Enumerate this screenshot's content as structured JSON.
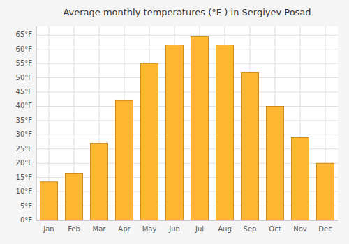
{
  "chart_data": {
    "type": "bar",
    "title": "Average monthly temperatures (°F ) in Sergiyev Posad",
    "categories": [
      "Jan",
      "Feb",
      "Mar",
      "Apr",
      "May",
      "Jun",
      "Jul",
      "Aug",
      "Sep",
      "Oct",
      "Nov",
      "Dec"
    ],
    "values": [
      13.5,
      16.5,
      27,
      42,
      55,
      61.5,
      64.5,
      61.5,
      52,
      40,
      29,
      20
    ],
    "color": "#FFB733",
    "ylim": [
      0,
      68
    ],
    "yticks": [
      {
        "value": 0,
        "label": "0°F"
      },
      {
        "value": 5,
        "label": "5°F"
      },
      {
        "value": 10,
        "label": "10°F"
      },
      {
        "value": 15,
        "label": "15°F"
      },
      {
        "value": 20,
        "label": "20°F"
      },
      {
        "value": 25,
        "label": "25°F"
      },
      {
        "value": 30,
        "label": "30°F"
      },
      {
        "value": 35,
        "label": "35°F"
      },
      {
        "value": 40,
        "label": "40°F"
      },
      {
        "value": 45,
        "label": "45°F"
      },
      {
        "value": 50,
        "label": "50°F"
      },
      {
        "value": 55,
        "label": "55°F"
      },
      {
        "value": 60,
        "label": "60°F"
      },
      {
        "value": 65,
        "label": "65°F"
      }
    ],
    "grid": true
  }
}
